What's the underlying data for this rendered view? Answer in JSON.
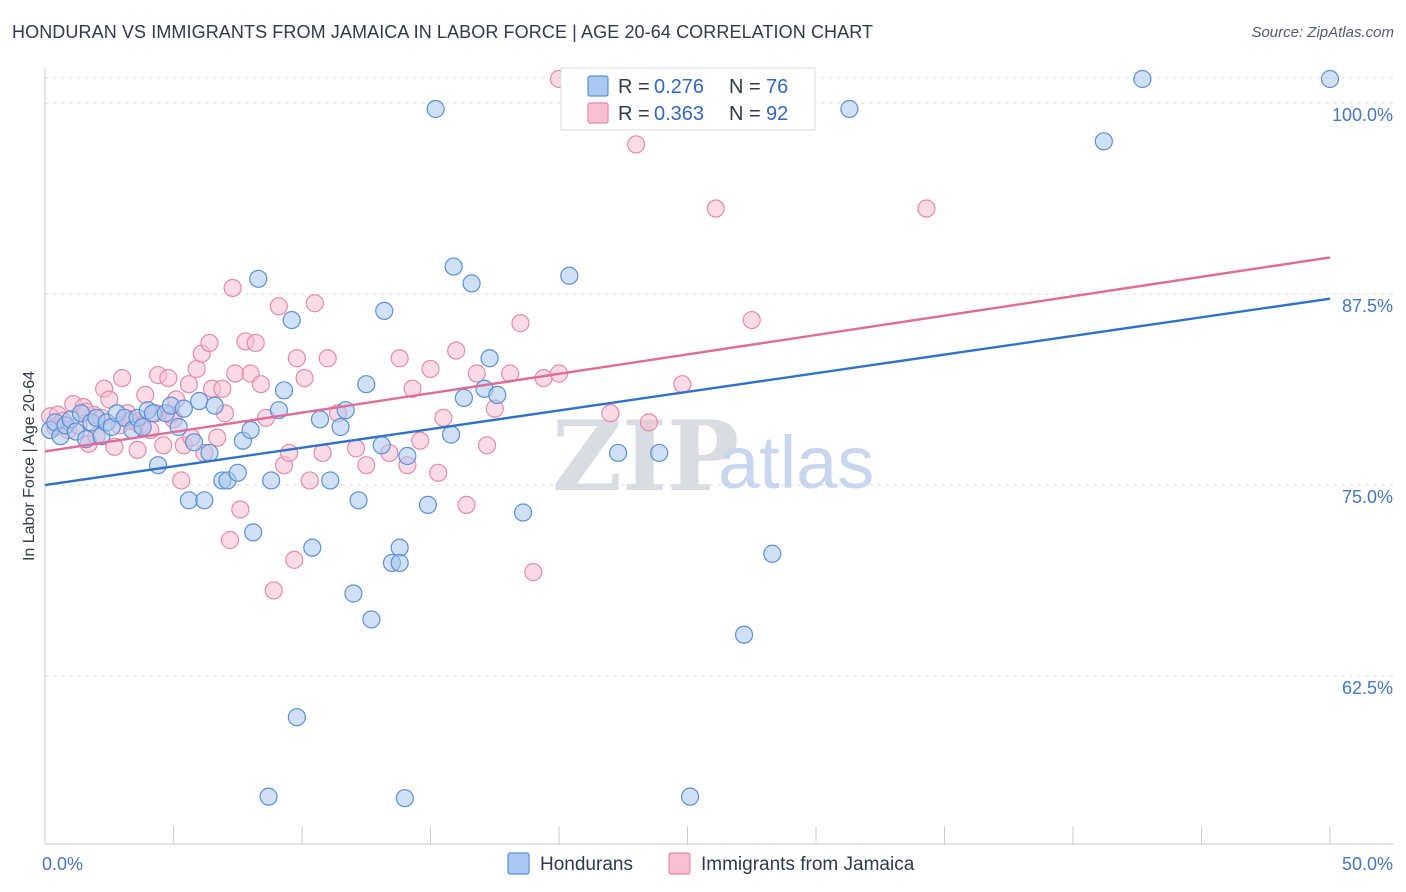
{
  "title": "HONDURAN VS IMMIGRANTS FROM JAMAICA IN LABOR FORCE | AGE 20-64 CORRELATION CHART",
  "source": "Source: ZipAtlas.com",
  "watermark": {
    "zip": "ZIP",
    "atlas": "atlas"
  },
  "colors": {
    "blue_fill": "#aac8f0",
    "blue_stroke": "#5b8fd6",
    "blue_line": "#2f72cc",
    "pink_fill": "#f7c0d2",
    "pink_stroke": "#e58aaa",
    "pink_line": "#e06b98",
    "tick_text": "#4477c4",
    "grid": "#d8dce3"
  },
  "legend": {
    "items": [
      {
        "r_label": "R =",
        "r_value": "0.276",
        "n_label": "N =",
        "n_value": "76"
      },
      {
        "r_label": "R =",
        "r_value": "0.363",
        "n_label": "N =",
        "n_value": "92"
      }
    ]
  },
  "chart_data": {
    "type": "scatter",
    "title": "HONDURAN VS IMMIGRANTS FROM JAMAICA IN LABOR FORCE | AGE 20-64 CORRELATION CHART",
    "xlabel": "",
    "ylabel": "In Labor Force | Age 20-64",
    "xlim": [
      0,
      50
    ],
    "ylim": [
      51.5,
      102.3
    ],
    "x_tick_labels": [
      "0.0%",
      "50.0%"
    ],
    "y_ticks": [
      62.5,
      75.0,
      87.5,
      100.0
    ],
    "y_tick_labels": [
      "62.5%",
      "75.0%",
      "87.5%",
      "100.0%"
    ],
    "grid": true,
    "legend_position": "bottom",
    "series": [
      {
        "name": "Hondurans",
        "trend": [
          [
            0,
            75.0
          ],
          [
            50,
            87.2
          ]
        ],
        "points": [
          [
            0.2,
            78.6
          ],
          [
            0.4,
            79.1
          ],
          [
            0.6,
            78.2
          ],
          [
            0.8,
            78.9
          ],
          [
            1.0,
            79.3
          ],
          [
            1.2,
            78.5
          ],
          [
            1.4,
            79.7
          ],
          [
            1.6,
            78.0
          ],
          [
            1.8,
            79.1
          ],
          [
            2.0,
            79.4
          ],
          [
            2.2,
            78.2
          ],
          [
            2.4,
            79.1
          ],
          [
            2.6,
            78.8
          ],
          [
            2.8,
            79.7
          ],
          [
            3.1,
            79.4
          ],
          [
            3.4,
            78.6
          ],
          [
            3.6,
            79.4
          ],
          [
            3.8,
            78.8
          ],
          [
            4.0,
            79.9
          ],
          [
            4.2,
            79.7
          ],
          [
            4.4,
            76.3
          ],
          [
            4.7,
            79.7
          ],
          [
            4.9,
            80.2
          ],
          [
            5.2,
            78.8
          ],
          [
            5.4,
            80.0
          ],
          [
            5.6,
            74.0
          ],
          [
            5.8,
            77.8
          ],
          [
            6.0,
            80.5
          ],
          [
            6.2,
            74.0
          ],
          [
            6.4,
            77.1
          ],
          [
            6.6,
            80.2
          ],
          [
            6.9,
            75.3
          ],
          [
            7.1,
            75.3
          ],
          [
            7.5,
            75.8
          ],
          [
            7.7,
            77.9
          ],
          [
            8.0,
            78.6
          ],
          [
            8.1,
            71.9
          ],
          [
            8.3,
            88.5
          ],
          [
            8.8,
            75.3
          ],
          [
            9.1,
            79.9
          ],
          [
            9.3,
            81.2
          ],
          [
            9.6,
            85.8
          ],
          [
            9.8,
            59.8
          ],
          [
            8.7,
            54.6
          ],
          [
            10.4,
            70.9
          ],
          [
            10.7,
            79.3
          ],
          [
            11.1,
            75.3
          ],
          [
            11.5,
            78.8
          ],
          [
            11.7,
            79.9
          ],
          [
            12.0,
            67.9
          ],
          [
            12.2,
            74.0
          ],
          [
            12.5,
            81.6
          ],
          [
            12.7,
            66.2
          ],
          [
            13.1,
            77.6
          ],
          [
            13.2,
            86.4
          ],
          [
            13.5,
            69.9
          ],
          [
            13.8,
            70.9
          ],
          [
            13.8,
            69.9
          ],
          [
            14.1,
            76.9
          ],
          [
            14.9,
            73.7
          ],
          [
            14.0,
            54.5
          ],
          [
            15.8,
            78.3
          ],
          [
            15.9,
            89.3
          ],
          [
            16.3,
            80.7
          ],
          [
            16.6,
            88.2
          ],
          [
            17.1,
            81.3
          ],
          [
            17.3,
            83.3
          ],
          [
            17.6,
            80.9
          ],
          [
            18.6,
            73.2
          ],
          [
            20.4,
            88.7
          ],
          [
            22.3,
            77.1
          ],
          [
            23.9,
            77.1
          ],
          [
            25.1,
            54.6
          ],
          [
            27.2,
            65.2
          ],
          [
            28.3,
            70.5
          ],
          [
            41.2,
            97.5
          ]
        ]
      },
      {
        "name": "Immigrants from Jamaica",
        "trend": [
          [
            0,
            77.2
          ],
          [
            50,
            89.9
          ]
        ],
        "points": [
          [
            0.2,
            79.5
          ],
          [
            0.4,
            78.8
          ],
          [
            0.5,
            79.6
          ],
          [
            0.7,
            79.2
          ],
          [
            0.9,
            78.6
          ],
          [
            1.1,
            80.3
          ],
          [
            1.3,
            78.9
          ],
          [
            1.5,
            80.1
          ],
          [
            1.7,
            77.7
          ],
          [
            1.9,
            79.6
          ],
          [
            2.0,
            78.2
          ],
          [
            2.2,
            79.4
          ],
          [
            2.3,
            81.3
          ],
          [
            2.5,
            80.6
          ],
          [
            2.7,
            77.5
          ],
          [
            2.9,
            78.9
          ],
          [
            3.0,
            82.0
          ],
          [
            3.2,
            79.7
          ],
          [
            3.4,
            79.3
          ],
          [
            3.6,
            77.3
          ],
          [
            3.7,
            78.9
          ],
          [
            3.9,
            80.9
          ],
          [
            4.1,
            78.6
          ],
          [
            4.3,
            79.7
          ],
          [
            4.4,
            82.2
          ],
          [
            4.6,
            77.6
          ],
          [
            4.8,
            82.0
          ],
          [
            4.9,
            79.6
          ],
          [
            5.1,
            80.6
          ],
          [
            5.3,
            75.3
          ],
          [
            5.4,
            77.6
          ],
          [
            5.6,
            81.6
          ],
          [
            5.7,
            78.1
          ],
          [
            5.9,
            82.6
          ],
          [
            6.1,
            83.6
          ],
          [
            6.2,
            77.1
          ],
          [
            6.4,
            84.3
          ],
          [
            6.5,
            81.3
          ],
          [
            6.7,
            78.1
          ],
          [
            6.9,
            81.3
          ],
          [
            7.0,
            79.7
          ],
          [
            7.2,
            71.4
          ],
          [
            7.4,
            82.3
          ],
          [
            7.6,
            73.4
          ],
          [
            7.8,
            84.4
          ],
          [
            8.0,
            82.3
          ],
          [
            8.2,
            84.3
          ],
          [
            8.4,
            81.6
          ],
          [
            8.6,
            79.4
          ],
          [
            8.9,
            68.1
          ],
          [
            9.1,
            86.7
          ],
          [
            9.3,
            76.3
          ],
          [
            9.5,
            77.1
          ],
          [
            9.7,
            70.1
          ],
          [
            9.8,
            83.3
          ],
          [
            10.1,
            82.0
          ],
          [
            10.3,
            75.3
          ],
          [
            10.5,
            86.9
          ],
          [
            10.8,
            77.1
          ],
          [
            11.0,
            83.3
          ],
          [
            11.4,
            79.7
          ],
          [
            12.1,
            77.4
          ],
          [
            12.5,
            76.3
          ],
          [
            13.4,
            77.1
          ],
          [
            13.8,
            83.3
          ],
          [
            14.1,
            76.3
          ],
          [
            14.3,
            81.3
          ],
          [
            14.6,
            77.9
          ],
          [
            15.0,
            82.6
          ],
          [
            15.3,
            75.8
          ],
          [
            15.5,
            79.4
          ],
          [
            16.0,
            83.8
          ],
          [
            16.4,
            73.7
          ],
          [
            16.8,
            82.3
          ],
          [
            17.2,
            77.6
          ],
          [
            17.5,
            80.0
          ],
          [
            18.1,
            82.3
          ],
          [
            18.5,
            85.6
          ],
          [
            19.0,
            69.3
          ],
          [
            19.4,
            82.0
          ],
          [
            20.0,
            82.3
          ],
          [
            22.0,
            79.7
          ],
          [
            23.5,
            79.1
          ],
          [
            24.8,
            81.6
          ],
          [
            26.1,
            93.1
          ],
          [
            27.5,
            85.8
          ],
          [
            23.0,
            97.3
          ],
          [
            34.3,
            93.1
          ],
          [
            7.3,
            87.9
          ],
          [
            3.3,
            79.2
          ],
          [
            1.6,
            79.8
          ],
          [
            5.0,
            79.3
          ]
        ]
      }
    ],
    "edge_points": {
      "Hondurans": [
        [
          42.7,
          100.0
        ],
        [
          50.0,
          100.0
        ],
        [
          31.3,
          98.4
        ],
        [
          15.2,
          98.9
        ]
      ],
      "Immigrants from Jamaica": [
        [
          20.0,
          100.0
        ]
      ]
    }
  },
  "bottom_legend": [
    "Hondurans",
    "Immigrants from Jamaica"
  ]
}
